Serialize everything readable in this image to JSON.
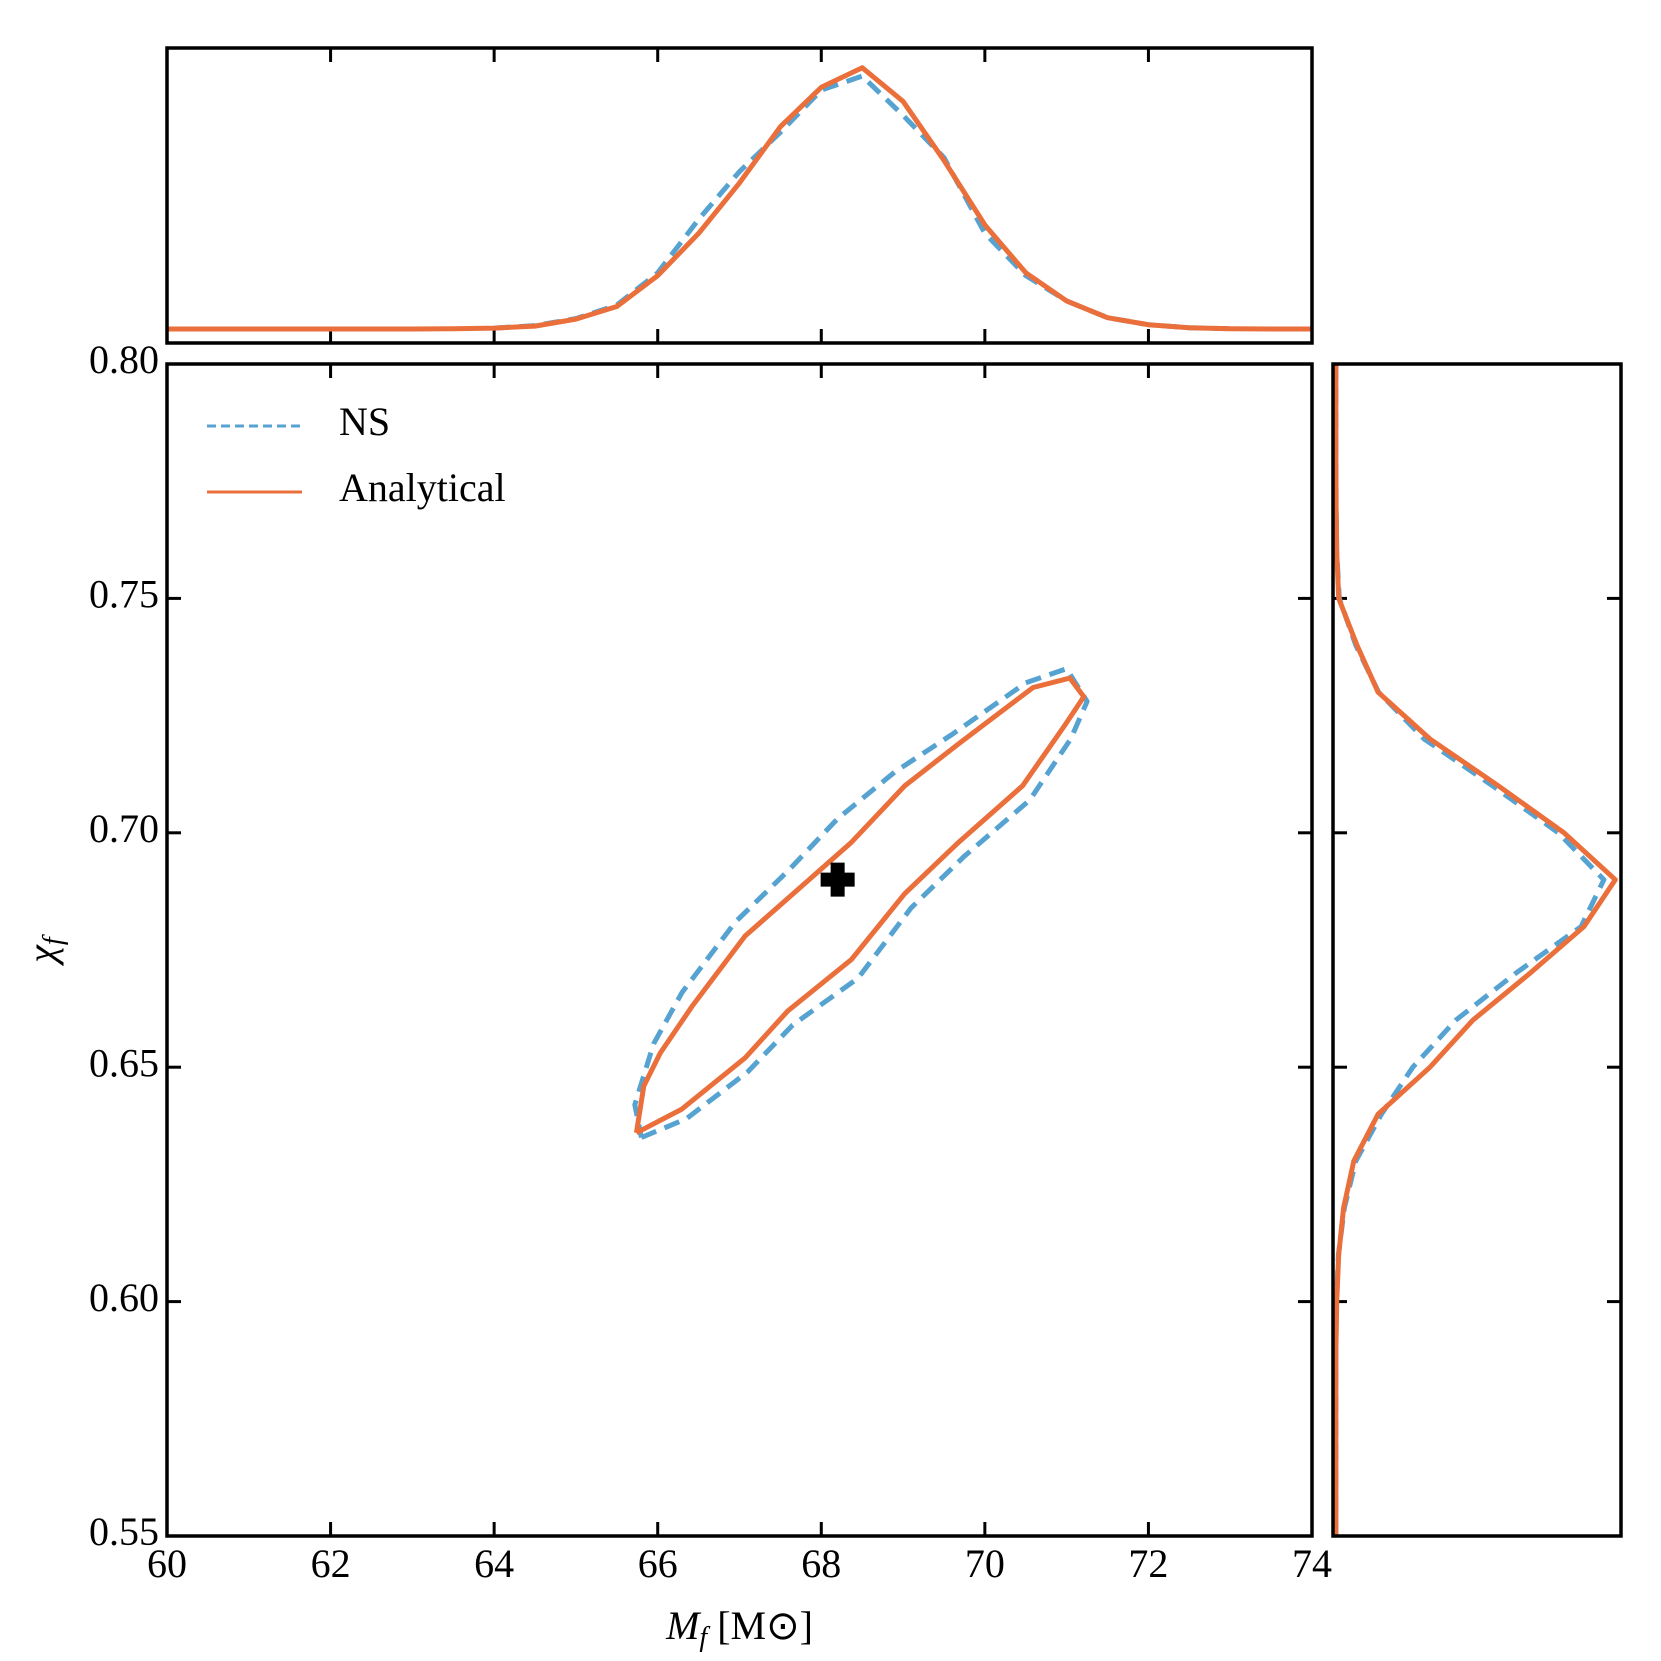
{
  "chart_data": [
    {
      "type": "contour",
      "xlabel": [
        "M",
        "f",
        " [M⊙]"
      ],
      "ylabel": [
        "χ",
        "f"
      ],
      "xlim": [
        60,
        74
      ],
      "ylim": [
        0.55,
        0.8
      ],
      "xticks": [
        60,
        62,
        64,
        66,
        68,
        70,
        72,
        74
      ],
      "yticks": [
        {
          "value": 0.55,
          "label": "0.55"
        },
        {
          "value": 0.6,
          "label": "0.60"
        },
        0.65,
        {
          "value": 0.7,
          "label": "0.70"
        },
        0.75,
        {
          "value": 0.8,
          "label": "0.80"
        }
      ],
      "legend": "upper left",
      "series": [
        {
          "name": "NS",
          "color": "#56a3d2",
          "linestyle": "dashed",
          "x": [
            65.8,
            66.35,
            67.1,
            67.65,
            68.45,
            69.1,
            69.75,
            70.55,
            71.05,
            71.25,
            71.0,
            70.5,
            69.6,
            68.9,
            68.2,
            67.6,
            66.95,
            66.3,
            65.95,
            65.72,
            65.8
          ],
          "y": [
            0.635,
            0.639,
            0.649,
            0.659,
            0.669,
            0.684,
            0.695,
            0.707,
            0.72,
            0.728,
            0.735,
            0.732,
            0.721,
            0.713,
            0.703,
            0.692,
            0.681,
            0.666,
            0.655,
            0.642,
            0.635
          ]
        },
        {
          "name": "Analytical",
          "color": "#ea6f3b",
          "linestyle": "solid",
          "x": [
            65.74,
            66.29,
            67.07,
            67.59,
            68.37,
            69.02,
            69.68,
            70.46,
            70.98,
            71.21,
            71.04,
            70.59,
            69.68,
            69.02,
            68.37,
            67.72,
            67.07,
            66.42,
            66.03,
            65.83,
            65.74
          ],
          "y": [
            0.636,
            0.641,
            0.652,
            0.662,
            0.673,
            0.687,
            0.698,
            0.71,
            0.723,
            0.729,
            0.733,
            0.731,
            0.719,
            0.71,
            0.698,
            0.688,
            0.678,
            0.663,
            0.653,
            0.646,
            0.636
          ]
        }
      ],
      "marker": {
        "x": 68.2,
        "y": 0.69,
        "color": "#000000"
      }
    },
    {
      "type": "line",
      "orientation": "vertical",
      "xlim": [
        60,
        74
      ],
      "ylim": [
        -0.05,
        1.0
      ],
      "xticks": [
        60,
        62,
        64,
        66,
        68,
        70,
        72,
        74
      ],
      "x": [
        60,
        60.5,
        61,
        61.5,
        62,
        62.5,
        63,
        63.5,
        64,
        64.5,
        65,
        65.5,
        66,
        66.5,
        67,
        67.5,
        68,
        68.5,
        69,
        69.5,
        70,
        70.5,
        71,
        71.5,
        72,
        72.5,
        73,
        73.5,
        74
      ],
      "series": [
        {
          "name": "NS",
          "color": "#56a3d2",
          "linestyle": "dashed",
          "values": [
            null,
            null,
            null,
            null,
            null,
            null,
            null,
            null,
            0.003,
            0.012,
            0.037,
            0.085,
            0.2,
            0.39,
            0.56,
            0.7,
            0.85,
            0.9,
            0.76,
            0.61,
            0.34,
            0.19,
            0.1,
            0.04,
            0.015,
            0.004,
            0.001,
            null,
            null
          ]
        },
        {
          "name": "Analytical",
          "color": "#ea6f3b",
          "linestyle": "solid",
          "values": [
            0,
            0,
            0,
            0,
            0,
            0,
            0,
            0.001,
            0.003,
            0.01,
            0.035,
            0.08,
            0.19,
            0.34,
            0.52,
            0.72,
            0.86,
            0.93,
            0.81,
            0.6,
            0.37,
            0.2,
            0.1,
            0.04,
            0.015,
            0.004,
            0.001,
            0,
            0
          ]
        }
      ]
    },
    {
      "type": "line",
      "orientation": "horizontal",
      "xlim": [
        -0.01,
        1.0
      ],
      "ylim": [
        0.55,
        0.8
      ],
      "yticks": [
        0.55,
        0.6,
        0.65,
        0.7,
        0.75,
        0.8
      ],
      "y": [
        0.55,
        0.56,
        0.57,
        0.58,
        0.59,
        0.6,
        0.61,
        0.62,
        0.63,
        0.64,
        0.65,
        0.66,
        0.67,
        0.68,
        0.69,
        0.7,
        0.71,
        0.72,
        0.73,
        0.74,
        0.75,
        0.76,
        0.77,
        0.78,
        0.79,
        0.8
      ],
      "series": [
        {
          "name": "NS",
          "color": "#56a3d2",
          "linestyle": "dashed",
          "values": [
            0,
            0,
            0,
            0,
            0,
            0.002,
            0.009,
            0.03,
            0.07,
            0.16,
            0.27,
            0.42,
            0.63,
            0.86,
            0.94,
            0.78,
            0.55,
            0.31,
            0.15,
            0.07,
            0.012,
            0.003,
            0.001,
            0,
            0,
            0
          ]
        },
        {
          "name": "Analytical",
          "color": "#ea6f3b",
          "linestyle": "solid",
          "values": [
            0,
            0,
            0,
            0,
            0,
            0.003,
            0.01,
            0.027,
            0.063,
            0.148,
            0.33,
            0.48,
            0.68,
            0.87,
            0.98,
            0.8,
            0.57,
            0.33,
            0.148,
            0.074,
            0.01,
            0.003,
            0.001,
            0,
            0,
            0
          ]
        }
      ]
    }
  ]
}
